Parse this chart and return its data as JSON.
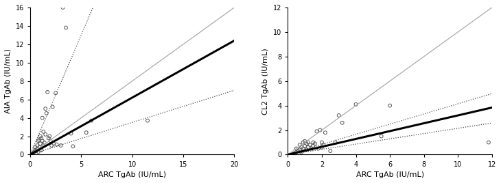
{
  "plot1": {
    "xlabel": "ARC TgAb (IU/mL)",
    "ylabel": "AIA TgAb (IU/mL)",
    "xlim": [
      0,
      20
    ],
    "ylim": [
      0,
      16
    ],
    "xticks": [
      0,
      5,
      10,
      15,
      20
    ],
    "yticks": [
      0,
      2,
      4,
      6,
      8,
      10,
      12,
      14,
      16
    ],
    "scatter_x": [
      0.2,
      0.3,
      0.4,
      0.5,
      0.5,
      0.6,
      0.7,
      0.7,
      0.8,
      0.8,
      0.9,
      0.9,
      1.0,
      1.0,
      1.1,
      1.1,
      1.2,
      1.2,
      1.3,
      1.3,
      1.4,
      1.5,
      1.5,
      1.6,
      1.7,
      1.8,
      1.9,
      2.0,
      2.1,
      2.2,
      2.3,
      2.5,
      2.6,
      3.0,
      3.2,
      3.5,
      4.0,
      4.2,
      5.5,
      6.0,
      11.5
    ],
    "scatter_y": [
      0.1,
      0.2,
      0.3,
      0.5,
      0.8,
      0.4,
      0.6,
      1.0,
      0.3,
      1.5,
      0.8,
      1.6,
      1.2,
      2.0,
      0.5,
      1.8,
      1.5,
      4.0,
      1.0,
      2.5,
      1.3,
      5.0,
      2.2,
      4.5,
      6.8,
      1.8,
      2.0,
      1.5,
      1.0,
      5.2,
      1.2,
      6.7,
      1.1,
      1.0,
      16.0,
      13.8,
      2.3,
      0.9,
      2.4,
      3.7,
      3.7
    ],
    "reg_line": {
      "slope": 0.62,
      "intercept": 0.0,
      "color": "#000000",
      "lw": 2.2
    },
    "ci_upper": {
      "slope": 2.6,
      "intercept": 0.0,
      "color": "#444444",
      "lw": 0.9,
      "ls": "dotted"
    },
    "ci_lower": {
      "slope": 0.35,
      "intercept": 0.0,
      "color": "#444444",
      "lw": 0.9,
      "ls": "dotted"
    },
    "identity_line": {
      "slope": 0.8,
      "intercept": 0.0,
      "color": "#aaaaaa",
      "lw": 0.9,
      "ls": "-"
    }
  },
  "plot2": {
    "xlabel": "ARC TgAb (IU/mL)",
    "ylabel": "CL2 TgAb (IU/mL)",
    "xlim": [
      0,
      12
    ],
    "ylim": [
      0,
      12
    ],
    "xticks": [
      0,
      2,
      4,
      6,
      8,
      10,
      12
    ],
    "yticks": [
      0,
      2,
      4,
      6,
      8,
      10,
      12
    ],
    "scatter_x": [
      0.3,
      0.4,
      0.5,
      0.5,
      0.6,
      0.7,
      0.7,
      0.8,
      0.8,
      0.9,
      0.9,
      1.0,
      1.0,
      1.1,
      1.1,
      1.2,
      1.2,
      1.3,
      1.4,
      1.5,
      1.5,
      1.6,
      1.7,
      1.8,
      1.9,
      2.0,
      2.0,
      2.1,
      2.2,
      2.5,
      2.8,
      3.0,
      3.2,
      4.0,
      5.5,
      6.0,
      11.8
    ],
    "scatter_y": [
      0.05,
      0.1,
      0.2,
      0.5,
      0.3,
      0.4,
      0.8,
      0.2,
      0.6,
      0.5,
      1.0,
      0.7,
      1.1,
      0.4,
      0.9,
      0.6,
      1.0,
      0.8,
      0.5,
      1.0,
      0.7,
      0.9,
      1.9,
      0.5,
      2.0,
      0.6,
      1.0,
      0.8,
      1.8,
      0.3,
      1.0,
      3.2,
      2.6,
      4.1,
      1.5,
      4.0,
      1.0
    ],
    "reg_line": {
      "slope": 0.32,
      "intercept": 0.0,
      "color": "#000000",
      "lw": 2.2
    },
    "ci_upper": {
      "slope": 0.415,
      "intercept": 0.0,
      "color": "#444444",
      "lw": 0.9,
      "ls": "dotted"
    },
    "ci_lower": {
      "slope": 0.215,
      "intercept": 0.0,
      "color": "#444444",
      "lw": 0.9,
      "ls": "dotted"
    },
    "identity_line": {
      "slope": 1.0,
      "intercept": 0.0,
      "color": "#aaaaaa",
      "lw": 0.9,
      "ls": "-"
    }
  },
  "scatter_marker": "o",
  "scatter_ms": 3.5,
  "scatter_color": "none",
  "scatter_edgecolor": "#555555",
  "scatter_lw": 0.7,
  "bg_color": "#ffffff",
  "font_size": 8
}
